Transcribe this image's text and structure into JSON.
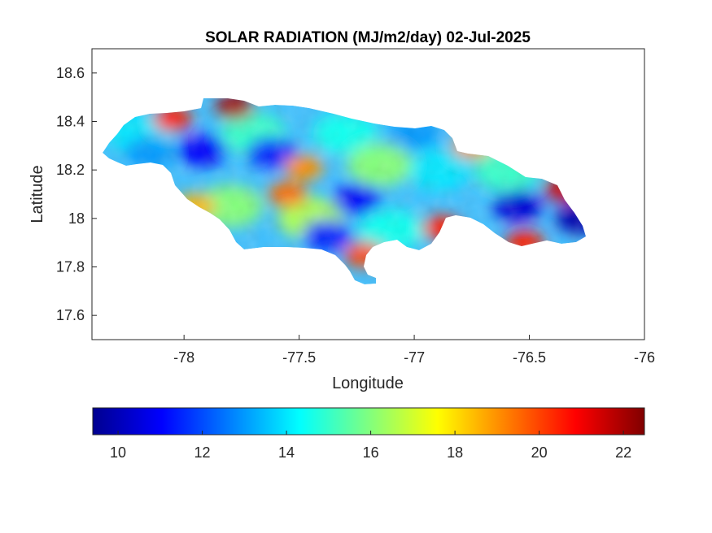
{
  "title": "SOLAR RADIATION (MJ/m2/day) 02-Jul-2025",
  "map": {
    "xlabel": "Longitude",
    "ylabel": "Latitude",
    "xlim": [
      -78.4,
      -76.0
    ],
    "ylim": [
      17.5,
      18.7
    ],
    "xticks": [
      -78,
      -77.5,
      -77,
      -76.5,
      -76
    ],
    "yticks": [
      17.6,
      17.8,
      18,
      18.2,
      18.4,
      18.6
    ],
    "xtick_labels": [
      "-78",
      "-77.5",
      "-77",
      "-76.5",
      "-76"
    ],
    "ytick_labels": [
      "17.6",
      "17.8",
      "18",
      "18.2",
      "18.4",
      "18.6"
    ],
    "colormap": "jet",
    "region": "Jamaica",
    "hotspots": [
      {
        "lon": -77.78,
        "lat": 18.46,
        "value": 22
      },
      {
        "lon": -78.05,
        "lat": 18.41,
        "value": 20.5
      },
      {
        "lon": -76.35,
        "lat": 18.12,
        "value": 21.5
      },
      {
        "lon": -76.52,
        "lat": 17.9,
        "value": 20.5
      },
      {
        "lon": -76.88,
        "lat": 17.96,
        "value": 20.5
      },
      {
        "lon": -77.22,
        "lat": 17.85,
        "value": 20
      },
      {
        "lon": -77.55,
        "lat": 18.1,
        "value": 19.5
      },
      {
        "lon": -76.75,
        "lat": 18.3,
        "value": 19
      },
      {
        "lon": -77.48,
        "lat": 18.21,
        "value": 19
      },
      {
        "lon": -77.95,
        "lat": 18.05,
        "value": 18.5
      }
    ],
    "coldspots": [
      {
        "lon": -77.92,
        "lat": 18.28,
        "value": 11
      },
      {
        "lon": -77.62,
        "lat": 18.27,
        "value": 11.5
      },
      {
        "lon": -77.25,
        "lat": 18.08,
        "value": 11
      },
      {
        "lon": -77.38,
        "lat": 17.93,
        "value": 11.5
      },
      {
        "lon": -76.55,
        "lat": 18.05,
        "value": 10.5
      },
      {
        "lon": -76.28,
        "lat": 18.0,
        "value": 10
      },
      {
        "lon": -78.15,
        "lat": 18.27,
        "value": 13
      },
      {
        "lon": -77.0,
        "lat": 18.35,
        "value": 13
      }
    ]
  },
  "colorbar": {
    "range": [
      9.4,
      22.5
    ],
    "ticks": [
      10,
      12,
      14,
      16,
      18,
      20,
      22
    ],
    "tick_labels": [
      "10",
      "12",
      "14",
      "16",
      "18",
      "20",
      "22"
    ]
  }
}
